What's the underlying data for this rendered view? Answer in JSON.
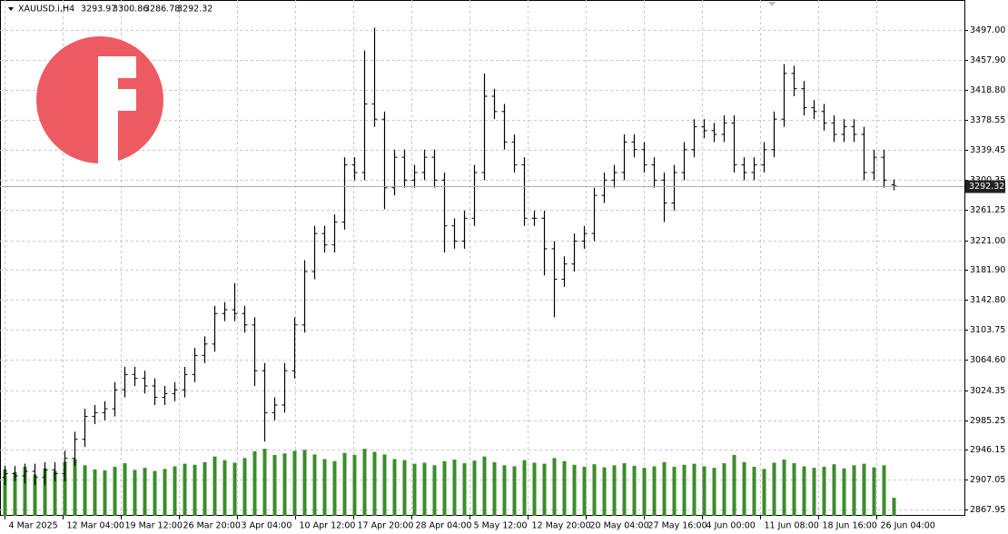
{
  "chart_data": {
    "type": "ohlc",
    "symbol": "XAUUSD.i,H4",
    "open": [
      2910,
      2915,
      2912,
      2918,
      2910,
      2920,
      2915,
      2935,
      2960,
      2990,
      2995,
      3000,
      3025,
      3045,
      3040,
      3030,
      3015,
      3020,
      3025,
      3045,
      3070,
      3085,
      3125,
      3130,
      3125,
      3110,
      3050,
      2995,
      3005,
      3050,
      3110,
      3180,
      3230,
      3215,
      3245,
      3320,
      3310,
      3400,
      3380,
      3290,
      3330,
      3300,
      3310,
      3330,
      3300,
      3240,
      3220,
      3250,
      3310,
      3410,
      3390,
      3350,
      3320,
      3250,
      3250,
      3210,
      3170,
      3190,
      3220,
      3230,
      3280,
      3300,
      3310,
      3350,
      3340,
      3320,
      3300,
      3270,
      3310,
      3340,
      3370,
      3365,
      3360,
      3375,
      3320,
      3310,
      3320,
      3340,
      3380,
      3440,
      3420,
      3395,
      3390,
      3375,
      3360,
      3370,
      3360,
      3310,
      3330,
      3293.97
    ],
    "high": [
      2925,
      2925,
      2928,
      2928,
      2930,
      2930,
      2945,
      2970,
      3000,
      3005,
      3010,
      3035,
      3055,
      3055,
      3050,
      3040,
      3030,
      3035,
      3055,
      3080,
      3095,
      3135,
      3140,
      3165,
      3135,
      3120,
      3060,
      3015,
      3060,
      3120,
      3195,
      3240,
      3240,
      3255,
      3330,
      3330,
      3470,
      3500,
      3390,
      3340,
      3340,
      3320,
      3340,
      3340,
      3310,
      3250,
      3260,
      3320,
      3440,
      3420,
      3400,
      3360,
      3330,
      3260,
      3260,
      3220,
      3200,
      3230,
      3240,
      3290,
      3310,
      3320,
      3360,
      3360,
      3350,
      3330,
      3310,
      3320,
      3350,
      3380,
      3380,
      3375,
      3385,
      3385,
      3330,
      3330,
      3350,
      3390,
      3452,
      3450,
      3430,
      3405,
      3400,
      3385,
      3380,
      3380,
      3370,
      3340,
      3340,
      3300.86
    ],
    "low": [
      2900,
      2905,
      2902,
      2900,
      2900,
      2905,
      2905,
      2925,
      2950,
      2980,
      2985,
      2990,
      3015,
      3030,
      3020,
      3005,
      3005,
      3010,
      3015,
      3035,
      3060,
      3075,
      3115,
      3115,
      3100,
      3030,
      2957,
      2985,
      2995,
      3040,
      3100,
      3170,
      3205,
      3205,
      3235,
      3300,
      3300,
      3370,
      3262,
      3280,
      3290,
      3290,
      3300,
      3290,
      3205,
      3210,
      3210,
      3240,
      3300,
      3380,
      3340,
      3310,
      3240,
      3240,
      3175,
      3120,
      3160,
      3180,
      3210,
      3220,
      3270,
      3290,
      3300,
      3330,
      3310,
      3290,
      3245,
      3260,
      3300,
      3330,
      3355,
      3350,
      3350,
      3310,
      3300,
      3300,
      3310,
      3330,
      3370,
      3410,
      3385,
      3380,
      3365,
      3350,
      3350,
      3350,
      3300,
      3300,
      3290,
      3286.78
    ],
    "close": [
      2915,
      2912,
      2918,
      2910,
      2920,
      2915,
      2935,
      2960,
      2990,
      2995,
      3000,
      3025,
      3045,
      3040,
      3030,
      3015,
      3020,
      3025,
      3045,
      3070,
      3085,
      3125,
      3130,
      3125,
      3110,
      3050,
      2995,
      3005,
      3050,
      3110,
      3180,
      3230,
      3215,
      3245,
      3320,
      3310,
      3400,
      3380,
      3290,
      3330,
      3300,
      3310,
      3330,
      3300,
      3240,
      3220,
      3250,
      3310,
      3410,
      3390,
      3350,
      3320,
      3250,
      3250,
      3210,
      3170,
      3190,
      3220,
      3230,
      3280,
      3300,
      3310,
      3350,
      3340,
      3320,
      3300,
      3270,
      3310,
      3340,
      3370,
      3365,
      3360,
      3375,
      3320,
      3310,
      3320,
      3340,
      3380,
      3440,
      3420,
      3395,
      3390,
      3375,
      3360,
      3370,
      3360,
      3310,
      3330,
      3300,
      3292.32
    ],
    "volume": [
      9000,
      8500,
      9500,
      8000,
      9200,
      8700,
      10500,
      11000,
      9800,
      9000,
      8800,
      9500,
      10200,
      8900,
      9300,
      8700,
      9100,
      9600,
      10100,
      9900,
      10400,
      11500,
      10800,
      10300,
      11200,
      12500,
      13000,
      11800,
      12100,
      12600,
      12800,
      11900,
      11000,
      10600,
      12200,
      11800,
      13000,
      12400,
      11900,
      11000,
      10800,
      10100,
      10300,
      9800,
      10600,
      10900,
      10200,
      10700,
      11500,
      10400,
      9800,
      9600,
      10800,
      10300,
      10100,
      11200,
      10600,
      9900,
      9500,
      10000,
      9400,
      9800,
      10200,
      9700,
      9300,
      9600,
      10400,
      9500,
      9900,
      10100,
      9600,
      9300,
      10200,
      11800,
      10400,
      9500,
      9100,
      10300,
      10900,
      10200,
      9600,
      9300,
      9500,
      10000,
      9200,
      9800,
      10100,
      9400,
      9800,
      3500
    ],
    "color": "#000000",
    "volume_color": "#3c8c2c",
    "xlim": [
      -0.4545,
      96.09
    ],
    "xticks": [
      {
        "value": 0,
        "label": "4 Mar 2025"
      },
      {
        "value": 5.818,
        "label": "12 Mar 04:00"
      },
      {
        "value": 11.636,
        "label": "19 Mar 12:00"
      },
      {
        "value": 17.455,
        "label": "26 Mar 20:00"
      },
      {
        "value": 23.273,
        "label": "3 Apr 04:00"
      },
      {
        "value": 29.091,
        "label": "10 Apr 12:00"
      },
      {
        "value": 34.909,
        "label": "17 Apr 20:00"
      },
      {
        "value": 40.727,
        "label": "28 Apr 04:00"
      },
      {
        "value": 46.545,
        "label": "5 May 12:00"
      },
      {
        "value": 52.364,
        "label": "12 May 20:00"
      },
      {
        "value": 58.182,
        "label": "20 May 04:00"
      },
      {
        "value": 64,
        "label": "27 May 16:00"
      },
      {
        "value": 69.818,
        "label": "4 Jun 00:00"
      },
      {
        "value": 75.636,
        "label": "11 Jun 08:00"
      },
      {
        "value": 81.455,
        "label": "18 Jun 16:00"
      },
      {
        "value": 87.273,
        "label": "26 Jun 04:00"
      }
    ],
    "ylim": [
      2859.6,
      3536.3
    ],
    "yticks": [
      {
        "value": 3497,
        "label": "3497.00"
      },
      {
        "value": 3457.9,
        "label": "3457.90"
      },
      {
        "value": 3418.8,
        "label": "3418.80"
      },
      {
        "value": 3378.55,
        "label": "3378.55"
      },
      {
        "value": 3339.45,
        "label": "3339.45"
      },
      {
        "value": 3300.35,
        "label": "3300.35"
      },
      {
        "value": 3261.25,
        "label": "3261.25"
      },
      {
        "value": 3221,
        "label": "3221.00"
      },
      {
        "value": 3181.9,
        "label": "3181.90"
      },
      {
        "value": 3142.8,
        "label": "3142.80"
      },
      {
        "value": 3103.75,
        "label": "3103.75"
      },
      {
        "value": 3064.6,
        "label": "3064.60"
      },
      {
        "value": 3024.35,
        "label": "3024.35"
      },
      {
        "value": 2985.25,
        "label": "2985.25"
      },
      {
        "value": 2946.15,
        "label": "2946.15"
      },
      {
        "value": 2907.05,
        "label": "2907.05"
      },
      {
        "value": 2867.95,
        "label": "2867.95"
      }
    ],
    "y2lim": [
      0,
      100000
    ],
    "grid": true
  }
}
